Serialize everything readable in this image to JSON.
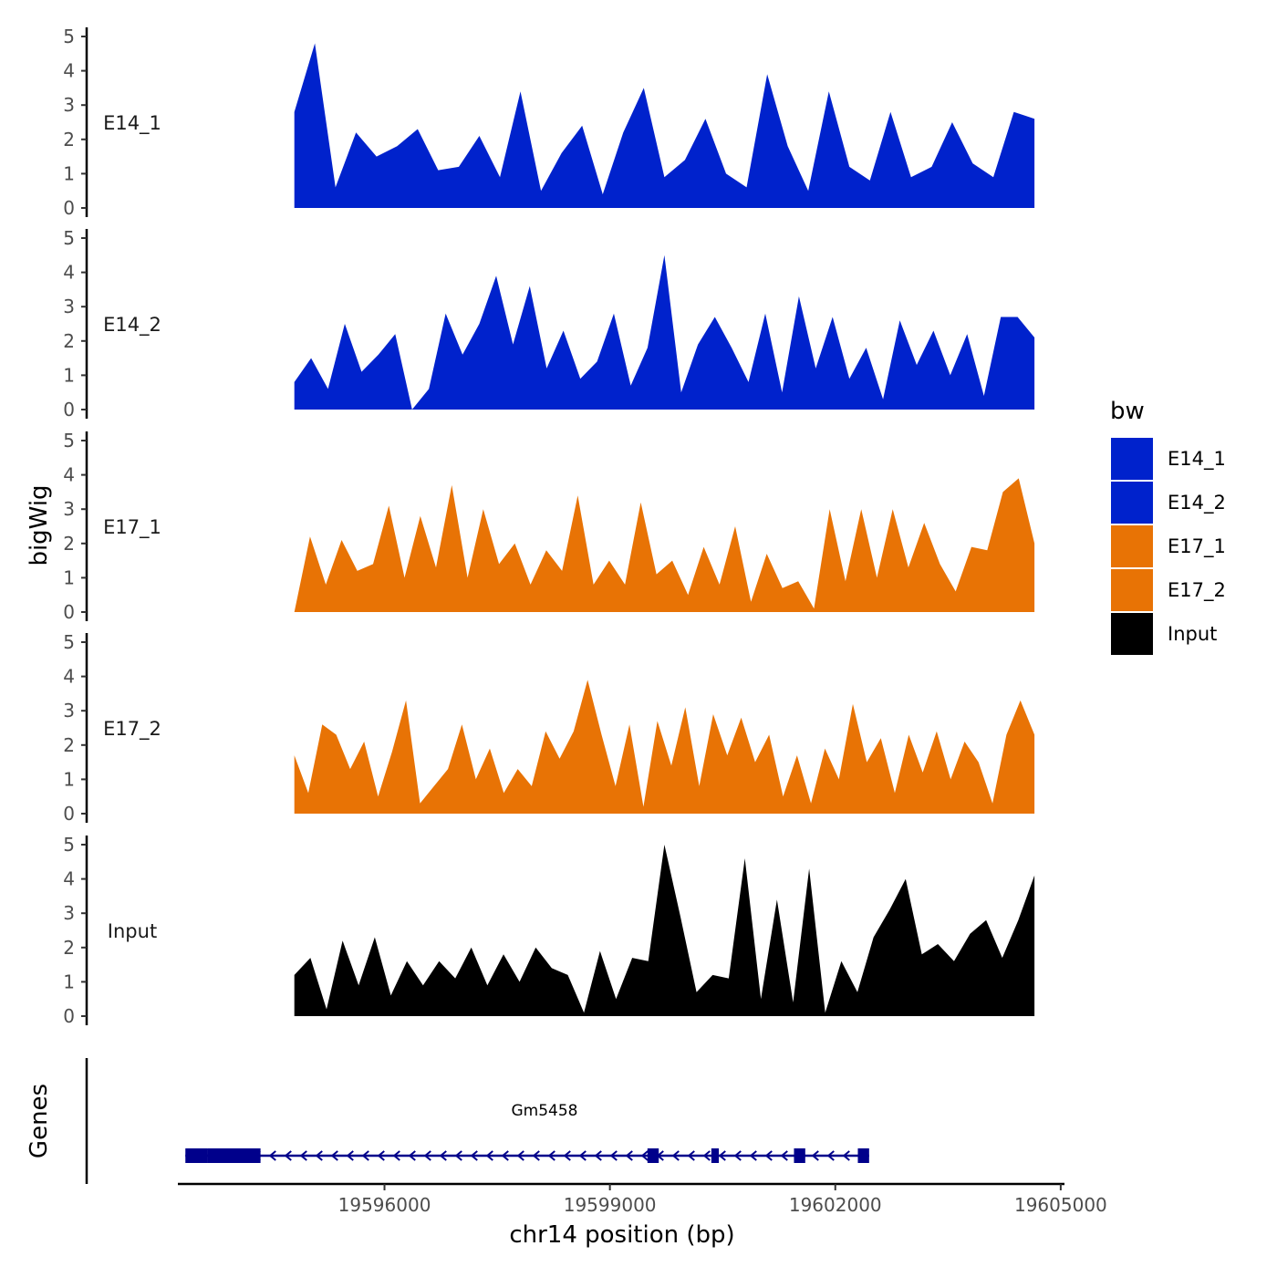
{
  "chart_data": {
    "type": "area",
    "title": "",
    "xlabel": "chr14 position (bp)",
    "ylabel": "bigWig",
    "genes_label": "Genes",
    "xlim": [
      19593250,
      19605050
    ],
    "ylim": [
      0,
      5
    ],
    "x_ticks": [
      19596000,
      19599000,
      19602000,
      19605000
    ],
    "x_tick_labels": [
      "19596000",
      "19599000",
      "19602000",
      "19605000"
    ],
    "y_ticks": [
      0,
      1,
      2,
      3,
      4,
      5
    ],
    "y_tick_labels": [
      "0",
      "1",
      "2",
      "3",
      "4",
      "5"
    ],
    "legend": {
      "title": "bw",
      "entries": [
        {
          "label": "E14_1",
          "color": "#0022cc"
        },
        {
          "label": "E14_2",
          "color": "#0022cc"
        },
        {
          "label": "E17_1",
          "color": "#e87305"
        },
        {
          "label": "E17_2",
          "color": "#e87305"
        },
        {
          "label": "Input",
          "color": "#000000"
        }
      ]
    },
    "track_x": [
      19594800,
      19595500,
      19596200,
      19596900,
      19597600,
      19598300,
      19599000,
      19599700,
      19600400,
      19601100,
      19601800,
      19602500,
      19603200,
      19603900,
      19604650
    ],
    "series": [
      {
        "name": "E14_1",
        "color": "#0022cc",
        "values": [
          2.8,
          4.8,
          0.6,
          2.2,
          1.5,
          1.8,
          2.3,
          1.1,
          1.2,
          2.1,
          0.9,
          3.4,
          0.5,
          1.6,
          2.4,
          0.4,
          2.2,
          3.5,
          0.9,
          1.4,
          2.6,
          1.0,
          0.6,
          3.9,
          1.8,
          0.5,
          3.4,
          1.2,
          0.8,
          2.8,
          0.9,
          1.2,
          2.5,
          1.3,
          0.9,
          2.8,
          2.6
        ]
      },
      {
        "name": "E14_2",
        "color": "#0022cc",
        "values": [
          0.8,
          1.5,
          0.6,
          2.5,
          1.1,
          1.6,
          2.2,
          0.0,
          0.6,
          2.8,
          1.6,
          2.5,
          3.9,
          1.9,
          3.6,
          1.2,
          2.3,
          0.9,
          1.4,
          2.8,
          0.7,
          1.8,
          4.5,
          0.5,
          1.9,
          2.7,
          1.8,
          0.8,
          2.8,
          0.5,
          3.3,
          1.2,
          2.7,
          0.9,
          1.8,
          0.3,
          2.6,
          1.3,
          2.3,
          1.0,
          2.2,
          0.4,
          2.7,
          2.7,
          2.1
        ]
      },
      {
        "name": "E17_1",
        "color": "#e87305",
        "values": [
          0.0,
          2.2,
          0.8,
          2.1,
          1.2,
          1.4,
          3.1,
          1.0,
          2.8,
          1.3,
          3.7,
          1.0,
          3.0,
          1.4,
          2.0,
          0.8,
          1.8,
          1.2,
          3.4,
          0.8,
          1.5,
          0.8,
          3.2,
          1.1,
          1.5,
          0.5,
          1.9,
          0.8,
          2.5,
          0.3,
          1.7,
          0.7,
          0.9,
          0.1,
          3.0,
          0.9,
          3.0,
          1.0,
          3.0,
          1.3,
          2.6,
          1.4,
          0.6,
          1.9,
          1.8,
          3.5,
          3.9,
          2.0
        ]
      },
      {
        "name": "E17_2",
        "color": "#e87305",
        "values": [
          1.7,
          0.6,
          2.6,
          2.3,
          1.3,
          2.1,
          0.5,
          1.8,
          3.3,
          0.3,
          0.8,
          1.3,
          2.6,
          1.0,
          1.9,
          0.6,
          1.3,
          0.8,
          2.4,
          1.6,
          2.4,
          3.9,
          2.3,
          0.8,
          2.6,
          0.2,
          2.7,
          1.4,
          3.1,
          0.8,
          2.9,
          1.7,
          2.8,
          1.5,
          2.3,
          0.5,
          1.7,
          0.3,
          1.9,
          1.0,
          3.2,
          1.5,
          2.2,
          0.6,
          2.3,
          1.2,
          2.4,
          1.0,
          2.1,
          1.5,
          0.3,
          2.3,
          3.3,
          2.3
        ]
      },
      {
        "name": "Input",
        "color": "#000000",
        "values": [
          1.2,
          1.7,
          0.2,
          2.2,
          0.9,
          2.3,
          0.6,
          1.6,
          0.9,
          1.6,
          1.1,
          2.0,
          0.9,
          1.8,
          1.0,
          2.0,
          1.4,
          1.2,
          0.1,
          1.9,
          0.5,
          1.7,
          1.6,
          5.0,
          2.9,
          0.7,
          1.2,
          1.1,
          4.6,
          0.5,
          3.4,
          0.4,
          4.3,
          0.1,
          1.6,
          0.7,
          2.3,
          3.1,
          4.0,
          1.8,
          2.1,
          1.6,
          2.4,
          2.8,
          1.7,
          2.8,
          4.1
        ]
      }
    ],
    "genes": [
      {
        "name": "Gm5458",
        "strand": "-",
        "start": 19593350,
        "end": 19602450,
        "exons": [
          [
            19593350,
            19593650
          ],
          [
            19593650,
            19594350
          ],
          [
            19599500,
            19599650
          ],
          [
            19600350,
            19600450
          ],
          [
            19601450,
            19601600
          ],
          [
            19602300,
            19602450
          ]
        ]
      }
    ]
  }
}
